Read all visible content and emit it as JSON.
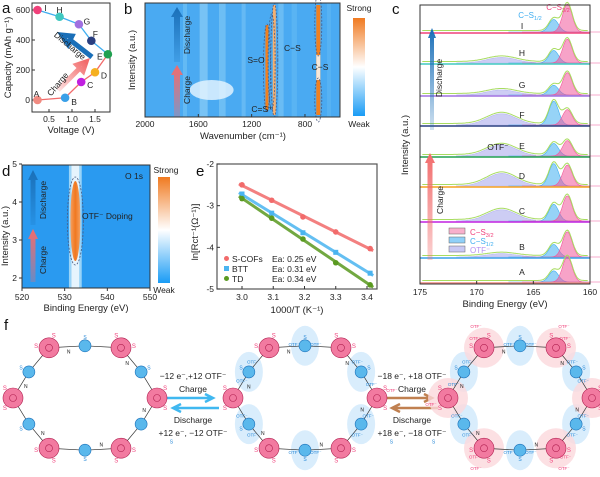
{
  "panels": {
    "a": "a",
    "b": "b",
    "c": "c",
    "d": "d",
    "e": "e",
    "f": "f"
  },
  "colors": {
    "charge": "#f26b6b",
    "discharge": "#1a6fb8",
    "pink": "#f0407a",
    "blue": "#40aef0",
    "green": "#8dd04a",
    "lavender": "#b8b8f0",
    "orange": "#f08020",
    "heat_blue": "#2a9af0"
  },
  "chart_data": [
    {
      "id": "a",
      "type": "scatter",
      "xlabel": "Voltage (V)",
      "ylabel": "Capacity (mAh g⁻¹)",
      "xticks": [
        0.5,
        1.0,
        1.5
      ],
      "xtick_labels": [
        "0.5",
        "1.0",
        "1.5"
      ],
      "yticks": [
        0,
        200,
        400,
        600
      ],
      "xlim": [
        0.13,
        1.85
      ],
      "ylim": [
        -80,
        650
      ],
      "arrow_labels": {
        "charge": "Charge",
        "discharge": "Discharge"
      },
      "points": [
        {
          "label": "A",
          "x": 0.25,
          "y": 0,
          "color": "#f08a80"
        },
        {
          "label": "B",
          "x": 0.85,
          "y": 15,
          "color": "#3aa0e8"
        },
        {
          "label": "C",
          "x": 1.2,
          "y": 120,
          "color": "#c020e0"
        },
        {
          "label": "D",
          "x": 1.5,
          "y": 185,
          "color": "#f5b020"
        },
        {
          "label": "E",
          "x": 1.78,
          "y": 305,
          "color": "#20a050"
        },
        {
          "label": "F",
          "x": 1.42,
          "y": 395,
          "color": "#2a3f80"
        },
        {
          "label": "G",
          "x": 1.15,
          "y": 505,
          "color": "#a070e0"
        },
        {
          "label": "H",
          "x": 0.73,
          "y": 555,
          "color": "#40c8c0"
        },
        {
          "label": "I",
          "x": 0.25,
          "y": 600,
          "color": "#f0407a"
        }
      ]
    },
    {
      "id": "b",
      "type": "heatmap",
      "xlabel": "Wavenumber (cm⁻¹)",
      "ylabel": "Intensity (a.u.)",
      "xlim": [
        2000,
        540
      ],
      "xticks": [
        2000,
        1600,
        1200,
        800
      ],
      "colorbar": {
        "max_label": "Strong",
        "min_label": "Weak"
      },
      "arrow_labels": {
        "charge": "Charge",
        "discharge": "Discharge"
      },
      "bands": [
        {
          "label": "S=O",
          "x": 1080
        },
        {
          "label": "C−S",
          "x": 1030
        },
        {
          "label": "C−S",
          "x": 700
        },
        {
          "label": "C=S⁺",
          "x": 1100
        }
      ]
    },
    {
      "id": "c",
      "type": "line",
      "xlabel": "Binding Energy (eV)",
      "ylabel": "Intensity (a.u.)",
      "xlim": [
        175,
        160
      ],
      "xticks": [
        175,
        170,
        165,
        160
      ],
      "peak_positions": {
        "cs32": 162.0,
        "cs12": 163.2,
        "otf": 167.8
      },
      "peak_labels": {
        "cs32": "C−S3/2",
        "cs12": "C−S1/2",
        "otf": "OTF⁻"
      },
      "legend": [
        "C−S3/2",
        "C−S1/2",
        "OTF⁻"
      ],
      "legend_placement": "lower-left",
      "arrow_labels": {
        "charge": "Charge",
        "discharge": "Discharge"
      },
      "states": [
        {
          "label": "I",
          "color": "#f0407a",
          "cs32": 1.0,
          "cs12": 0.45,
          "otf": 0.0
        },
        {
          "label": "H",
          "color": "#40c8c0",
          "cs32": 0.85,
          "cs12": 0.45,
          "otf": 0.2
        },
        {
          "label": "G",
          "color": "#a070e0",
          "cs32": 0.8,
          "cs12": 0.35,
          "otf": 0.18
        },
        {
          "label": "F",
          "color": "#2a3f80",
          "cs32": 0.55,
          "cs12": 0.85,
          "otf": 0.4
        },
        {
          "label": "E",
          "color": "#20a050",
          "cs32": 0.55,
          "cs12": 0.45,
          "otf": 0.4
        },
        {
          "label": "D",
          "color": "#f5a020",
          "cs32": 0.75,
          "cs12": 0.8,
          "otf": 0.45
        },
        {
          "label": "C",
          "color": "#c020e0",
          "cs32": 0.9,
          "cs12": 0.6,
          "otf": 0.4
        },
        {
          "label": "B",
          "color": "#3aa0e8",
          "cs32": 0.9,
          "cs12": 0.45,
          "otf": 0.12
        },
        {
          "label": "A",
          "color": "#f08a80",
          "cs32": 0.9,
          "cs12": 0.4,
          "otf": 0.0
        }
      ]
    },
    {
      "id": "d",
      "type": "heatmap",
      "title": "O 1s",
      "xlabel": "Binding Energy (eV)",
      "ylabel": "Intensity (a.u.)",
      "xlim": [
        520,
        550
      ],
      "ylim": [
        1.8,
        5
      ],
      "xticks": [
        520,
        530,
        540,
        550
      ],
      "yticks": [
        2,
        3,
        4,
        5
      ],
      "annotation": "OTF⁻ Doping",
      "band_center": 532.5,
      "colorbar": {
        "max_label": "Strong",
        "min_label": "Weak"
      },
      "arrow_labels": {
        "charge": "Charge",
        "discharge": "Discharge"
      }
    },
    {
      "id": "e",
      "type": "scatter",
      "xlabel": "1000/T (K⁻¹)",
      "ylabel": "ln[Rct⁻¹(Ω⁻¹)]",
      "xlim": [
        2.92,
        3.45
      ],
      "ylim": [
        -5,
        -2
      ],
      "xticks": [
        3.0,
        3.1,
        3.2,
        3.3,
        3.4
      ],
      "yticks": [
        -2,
        -3,
        -4,
        -5
      ],
      "legend_placement": "lower-left",
      "x": [
        3.0,
        3.095,
        3.195,
        3.3,
        3.41
      ],
      "series": [
        {
          "name": "S-COFs",
          "ea": "Ea: 0.25 eV",
          "color": "#f26b6b",
          "values": [
            -2.5,
            -2.87,
            -3.27,
            -3.63,
            -4.03
          ]
        },
        {
          "name": "BTT",
          "ea": "Ea: 0.31 eV",
          "color": "#4ab4f0",
          "values": [
            -2.72,
            -3.18,
            -3.65,
            -4.12,
            -4.62
          ]
        },
        {
          "name": "TD",
          "ea": "Ea: 0.34 eV",
          "color": "#5a9a20",
          "values": [
            -2.83,
            -3.3,
            -3.8,
            -4.37,
            -4.9
          ]
        }
      ]
    }
  ],
  "diagram_f": {
    "step1": {
      "top": "−12 e⁻,+12 OTF⁻",
      "charge": "Charge",
      "discharge": "Discharge",
      "bottom": "+12 e⁻, −12 OTF⁻",
      "color": "#30aef0"
    },
    "step2": {
      "top": "−18 e⁻, +18 OTF⁻",
      "charge": "Charge",
      "discharge": "Discharge",
      "bottom": "+18 e⁻, −18 OTF⁻",
      "color": "#f08070"
    },
    "ion_label": "OTF⁻",
    "atom_s": "S",
    "atom_n": "N"
  }
}
